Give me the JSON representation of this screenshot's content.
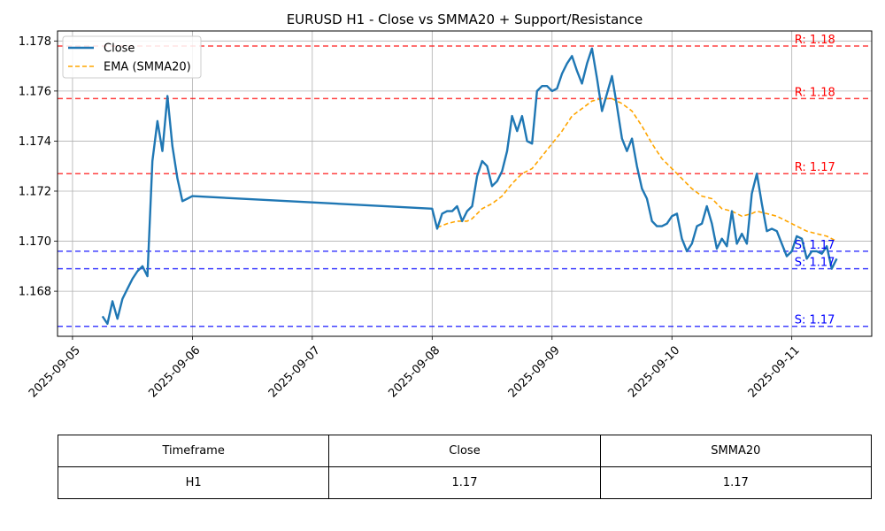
{
  "chart_data": {
    "type": "line",
    "title": "EURUSD H1 - Close vs SMMA20 + Support/Resistance",
    "xlabel": "",
    "ylabel": "",
    "x_ticks": [
      "2025-09-05",
      "2025-09-06",
      "2025-09-07",
      "2025-09-08",
      "2025-09-09",
      "2025-09-10",
      "2025-09-11"
    ],
    "y_ticks": [
      "1.168",
      "1.170",
      "1.172",
      "1.174",
      "1.176",
      "1.178"
    ],
    "ylim": [
      1.1662,
      1.1784
    ],
    "xlim": [
      "2025-09-04 21:00",
      "2025-09-11 16:00"
    ],
    "grid": true,
    "legend_position": "top-left",
    "series": [
      {
        "name": "Close",
        "color": "#1f77b4",
        "style": "solid",
        "points": [
          [
            "2025-09-05 06:00",
            1.167
          ],
          [
            "2025-09-05 07:00",
            1.1667
          ],
          [
            "2025-09-05 08:00",
            1.1676
          ],
          [
            "2025-09-05 09:00",
            1.1669
          ],
          [
            "2025-09-05 10:00",
            1.1677
          ],
          [
            "2025-09-05 11:00",
            1.1681
          ],
          [
            "2025-09-05 12:00",
            1.1685
          ],
          [
            "2025-09-05 13:00",
            1.1688
          ],
          [
            "2025-09-05 14:00",
            1.169
          ],
          [
            "2025-09-05 15:00",
            1.1686
          ],
          [
            "2025-09-05 16:00",
            1.1732
          ],
          [
            "2025-09-05 17:00",
            1.1748
          ],
          [
            "2025-09-05 18:00",
            1.1736
          ],
          [
            "2025-09-05 19:00",
            1.1758
          ],
          [
            "2025-09-05 20:00",
            1.1738
          ],
          [
            "2025-09-05 21:00",
            1.1725
          ],
          [
            "2025-09-05 22:00",
            1.1716
          ],
          [
            "2025-09-05 23:00",
            1.1717
          ],
          [
            "2025-09-06 00:00",
            1.1718
          ],
          [
            "2025-09-08 00:00",
            1.1713
          ],
          [
            "2025-09-08 01:00",
            1.1705
          ],
          [
            "2025-09-08 02:00",
            1.1711
          ],
          [
            "2025-09-08 03:00",
            1.1712
          ],
          [
            "2025-09-08 04:00",
            1.1712
          ],
          [
            "2025-09-08 05:00",
            1.1714
          ],
          [
            "2025-09-08 06:00",
            1.1708
          ],
          [
            "2025-09-08 07:00",
            1.1712
          ],
          [
            "2025-09-08 08:00",
            1.1714
          ],
          [
            "2025-09-08 09:00",
            1.1726
          ],
          [
            "2025-09-08 10:00",
            1.1732
          ],
          [
            "2025-09-08 11:00",
            1.173
          ],
          [
            "2025-09-08 12:00",
            1.1722
          ],
          [
            "2025-09-08 13:00",
            1.1724
          ],
          [
            "2025-09-08 14:00",
            1.1728
          ],
          [
            "2025-09-08 15:00",
            1.1736
          ],
          [
            "2025-09-08 16:00",
            1.175
          ],
          [
            "2025-09-08 17:00",
            1.1744
          ],
          [
            "2025-09-08 18:00",
            1.175
          ],
          [
            "2025-09-08 19:00",
            1.174
          ],
          [
            "2025-09-08 20:00",
            1.1739
          ],
          [
            "2025-09-08 21:00",
            1.176
          ],
          [
            "2025-09-08 22:00",
            1.1762
          ],
          [
            "2025-09-08 23:00",
            1.1762
          ],
          [
            "2025-09-09 00:00",
            1.176
          ],
          [
            "2025-09-09 01:00",
            1.1761
          ],
          [
            "2025-09-09 02:00",
            1.1767
          ],
          [
            "2025-09-09 03:00",
            1.1771
          ],
          [
            "2025-09-09 04:00",
            1.1774
          ],
          [
            "2025-09-09 05:00",
            1.1768
          ],
          [
            "2025-09-09 06:00",
            1.1763
          ],
          [
            "2025-09-09 07:00",
            1.1771
          ],
          [
            "2025-09-09 08:00",
            1.1777
          ],
          [
            "2025-09-09 09:00",
            1.1765
          ],
          [
            "2025-09-09 10:00",
            1.1752
          ],
          [
            "2025-09-09 11:00",
            1.1759
          ],
          [
            "2025-09-09 12:00",
            1.1766
          ],
          [
            "2025-09-09 13:00",
            1.1754
          ],
          [
            "2025-09-09 14:00",
            1.1741
          ],
          [
            "2025-09-09 15:00",
            1.1736
          ],
          [
            "2025-09-09 16:00",
            1.1741
          ],
          [
            "2025-09-09 17:00",
            1.173
          ],
          [
            "2025-09-09 18:00",
            1.1721
          ],
          [
            "2025-09-09 19:00",
            1.1717
          ],
          [
            "2025-09-09 20:00",
            1.1708
          ],
          [
            "2025-09-09 21:00",
            1.1706
          ],
          [
            "2025-09-09 22:00",
            1.1706
          ],
          [
            "2025-09-09 23:00",
            1.1707
          ],
          [
            "2025-09-10 00:00",
            1.171
          ],
          [
            "2025-09-10 01:00",
            1.1711
          ],
          [
            "2025-09-10 02:00",
            1.1701
          ],
          [
            "2025-09-10 03:00",
            1.1696
          ],
          [
            "2025-09-10 04:00",
            1.1699
          ],
          [
            "2025-09-10 05:00",
            1.1706
          ],
          [
            "2025-09-10 06:00",
            1.1707
          ],
          [
            "2025-09-10 07:00",
            1.1714
          ],
          [
            "2025-09-10 08:00",
            1.1707
          ],
          [
            "2025-09-10 09:00",
            1.1697
          ],
          [
            "2025-09-10 10:00",
            1.1701
          ],
          [
            "2025-09-10 11:00",
            1.1698
          ],
          [
            "2025-09-10 12:00",
            1.1712
          ],
          [
            "2025-09-10 13:00",
            1.1699
          ],
          [
            "2025-09-10 14:00",
            1.1703
          ],
          [
            "2025-09-10 15:00",
            1.1699
          ],
          [
            "2025-09-10 16:00",
            1.1719
          ],
          [
            "2025-09-10 17:00",
            1.1727
          ],
          [
            "2025-09-10 18:00",
            1.1715
          ],
          [
            "2025-09-10 19:00",
            1.1704
          ],
          [
            "2025-09-10 20:00",
            1.1705
          ],
          [
            "2025-09-10 21:00",
            1.1704
          ],
          [
            "2025-09-10 22:00",
            1.1699
          ],
          [
            "2025-09-10 23:00",
            1.1694
          ],
          [
            "2025-09-11 00:00",
            1.1696
          ],
          [
            "2025-09-11 01:00",
            1.1702
          ],
          [
            "2025-09-11 02:00",
            1.1701
          ],
          [
            "2025-09-11 03:00",
            1.1693
          ],
          [
            "2025-09-11 04:00",
            1.1696
          ],
          [
            "2025-09-11 05:00",
            1.1696
          ],
          [
            "2025-09-11 06:00",
            1.1695
          ],
          [
            "2025-09-11 07:00",
            1.1698
          ],
          [
            "2025-09-11 08:00",
            1.1689
          ],
          [
            "2025-09-11 09:00",
            1.1693
          ]
        ]
      },
      {
        "name": "EMA (SMMA20)",
        "color": "#ffa500",
        "style": "dashed",
        "points": [
          [
            "2025-09-08 01:00",
            1.17055
          ],
          [
            "2025-09-08 03:00",
            1.1707
          ],
          [
            "2025-09-08 05:00",
            1.1708
          ],
          [
            "2025-09-08 07:00",
            1.1708
          ],
          [
            "2025-09-08 08:00",
            1.1709
          ],
          [
            "2025-09-08 10:00",
            1.1713
          ],
          [
            "2025-09-08 12:00",
            1.1715
          ],
          [
            "2025-09-08 14:00",
            1.1718
          ],
          [
            "2025-09-08 16:00",
            1.1723
          ],
          [
            "2025-09-08 18:00",
            1.1727
          ],
          [
            "2025-09-08 20:00",
            1.1729
          ],
          [
            "2025-09-08 22:00",
            1.1734
          ],
          [
            "2025-09-09 00:00",
            1.1739
          ],
          [
            "2025-09-09 02:00",
            1.1744
          ],
          [
            "2025-09-09 04:00",
            1.175
          ],
          [
            "2025-09-09 06:00",
            1.1753
          ],
          [
            "2025-09-09 08:00",
            1.1756
          ],
          [
            "2025-09-09 10:00",
            1.1757
          ],
          [
            "2025-09-09 12:00",
            1.1757
          ],
          [
            "2025-09-09 14:00",
            1.1755
          ],
          [
            "2025-09-09 16:00",
            1.1752
          ],
          [
            "2025-09-09 18:00",
            1.1746
          ],
          [
            "2025-09-09 20:00",
            1.1739
          ],
          [
            "2025-09-09 22:00",
            1.1733
          ],
          [
            "2025-09-10 00:00",
            1.1729
          ],
          [
            "2025-09-10 02:00",
            1.1725
          ],
          [
            "2025-09-10 04:00",
            1.1721
          ],
          [
            "2025-09-10 06:00",
            1.1718
          ],
          [
            "2025-09-10 08:00",
            1.1717
          ],
          [
            "2025-09-10 10:00",
            1.1713
          ],
          [
            "2025-09-10 12:00",
            1.1712
          ],
          [
            "2025-09-10 14:00",
            1.171
          ],
          [
            "2025-09-10 16:00",
            1.1711
          ],
          [
            "2025-09-10 17:00",
            1.1712
          ],
          [
            "2025-09-10 19:00",
            1.1711
          ],
          [
            "2025-09-10 21:00",
            1.171
          ],
          [
            "2025-09-10 23:00",
            1.1708
          ],
          [
            "2025-09-11 01:00",
            1.1706
          ],
          [
            "2025-09-11 03:00",
            1.1704
          ],
          [
            "2025-09-11 05:00",
            1.1703
          ],
          [
            "2025-09-11 07:00",
            1.1702
          ],
          [
            "2025-09-11 09:00",
            1.17
          ]
        ]
      }
    ],
    "resistance_lines": [
      {
        "value": 1.1778,
        "label": "R: 1.18",
        "color": "#ff0000"
      },
      {
        "value": 1.1757,
        "label": "R: 1.18",
        "color": "#ff0000"
      },
      {
        "value": 1.1727,
        "label": "R: 1.17",
        "color": "#ff0000"
      }
    ],
    "support_lines": [
      {
        "value": 1.1696,
        "label": "S: 1.17",
        "color": "#0000ff"
      },
      {
        "value": 1.1689,
        "label": "S: 1.17",
        "color": "#0000ff"
      },
      {
        "value": 1.1666,
        "label": "S: 1.17",
        "color": "#0000ff"
      }
    ]
  },
  "table": {
    "headers": [
      "Timeframe",
      "Close",
      "SMMA20"
    ],
    "row": [
      "H1",
      "1.17",
      "1.17"
    ]
  }
}
